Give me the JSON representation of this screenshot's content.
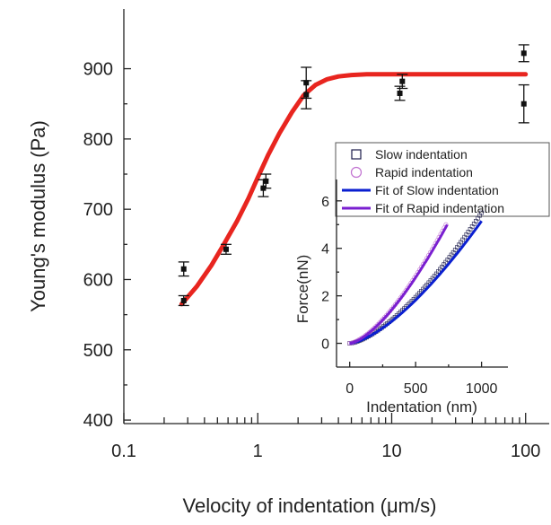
{
  "chart_data": [
    {
      "type": "scatter",
      "xlabel": "Velocity of indentation (μm/s)",
      "ylabel": "Young's modulus (Pa)",
      "x_scale": "log",
      "xlim": [
        0.1,
        150
      ],
      "ylim": [
        395,
        985
      ],
      "x_ticks": [
        0.1,
        1,
        10,
        100
      ],
      "x_tick_labels": [
        "0.1",
        "1",
        "10",
        "100"
      ],
      "y_ticks": [
        400,
        500,
        600,
        700,
        800,
        900
      ],
      "y_tick_labels": [
        "400",
        "500",
        "600",
        "700",
        "800",
        "900"
      ],
      "series": [
        {
          "marker": "square",
          "color": "#111111",
          "points": [
            {
              "x": 0.28,
              "y": 615,
              "err": 10
            },
            {
              "x": 0.28,
              "y": 570,
              "err": 7
            },
            {
              "x": 0.58,
              "y": 643,
              "err": 7
            },
            {
              "x": 1.1,
              "y": 730,
              "err": 12
            },
            {
              "x": 1.15,
              "y": 740,
              "err": 10
            },
            {
              "x": 2.3,
              "y": 880,
              "err": 22
            },
            {
              "x": 2.3,
              "y": 863,
              "err": 20
            },
            {
              "x": 11.5,
              "y": 865,
              "err": 10
            },
            {
              "x": 12.0,
              "y": 882,
              "err": 10
            },
            {
              "x": 97,
              "y": 922,
              "err": 12
            },
            {
              "x": 97,
              "y": 850,
              "err": 27
            }
          ]
        },
        {
          "type": "line",
          "color": "#e8251f",
          "x": [
            0.27,
            0.35,
            0.45,
            0.55,
            0.7,
            0.85,
            1.0,
            1.2,
            1.45,
            1.8,
            2.2,
            2.7,
            3.3,
            4.0,
            5.0,
            6.5,
            8.5,
            12,
            20,
            40,
            100
          ],
          "y": [
            565,
            590,
            620,
            648,
            683,
            715,
            745,
            778,
            808,
            838,
            862,
            877,
            885,
            889,
            891,
            892,
            892,
            892,
            892,
            892,
            892
          ]
        }
      ]
    },
    {
      "type": "line",
      "xlabel": "Indentation (nm)",
      "ylabel": "Force(nN)",
      "xlim": [
        -100,
        1200
      ],
      "ylim": [
        -1,
        6.9
      ],
      "x_ticks": [
        0,
        500,
        1000
      ],
      "x_tick_labels": [
        "0",
        "500",
        "1000"
      ],
      "y_ticks": [
        0,
        2,
        4,
        6
      ],
      "y_tick_labels": [
        "0",
        "2",
        "4",
        "6"
      ],
      "legend": {
        "placement": "top-right",
        "entries": [
          {
            "label": "Slow indentation",
            "marker": "open-square",
            "color": "#1a1a4a"
          },
          {
            "label": "Rapid indentation",
            "marker": "open-circle",
            "color": "#c070d0"
          },
          {
            "label": "Fit of Slow indentation",
            "marker": "line",
            "color": "#0a1fd0"
          },
          {
            "label": "Fit of Rapid indentation",
            "marker": "line",
            "color": "#7a1fd0"
          }
        ]
      },
      "series": [
        {
          "name": "Slow indentation",
          "marker": "open-square",
          "color": "#1a1a4a",
          "x_range": [
            0,
            1000
          ],
          "ymax": 5.5,
          "exponent": 1.5
        },
        {
          "name": "Rapid indentation",
          "marker": "open-circle",
          "color": "#c070d0",
          "x_range": [
            0,
            730
          ],
          "ymax": 5.0,
          "exponent": 1.5
        },
        {
          "name": "Fit of Slow indentation",
          "color": "#0a1fd0",
          "x_range": [
            0,
            1000
          ],
          "ymax": 5.15,
          "exponent": 1.5
        },
        {
          "name": "Fit of Rapid indentation",
          "color": "#7a1fd0",
          "x_range": [
            0,
            740
          ],
          "ymax": 5.0,
          "exponent": 1.5
        }
      ]
    }
  ]
}
